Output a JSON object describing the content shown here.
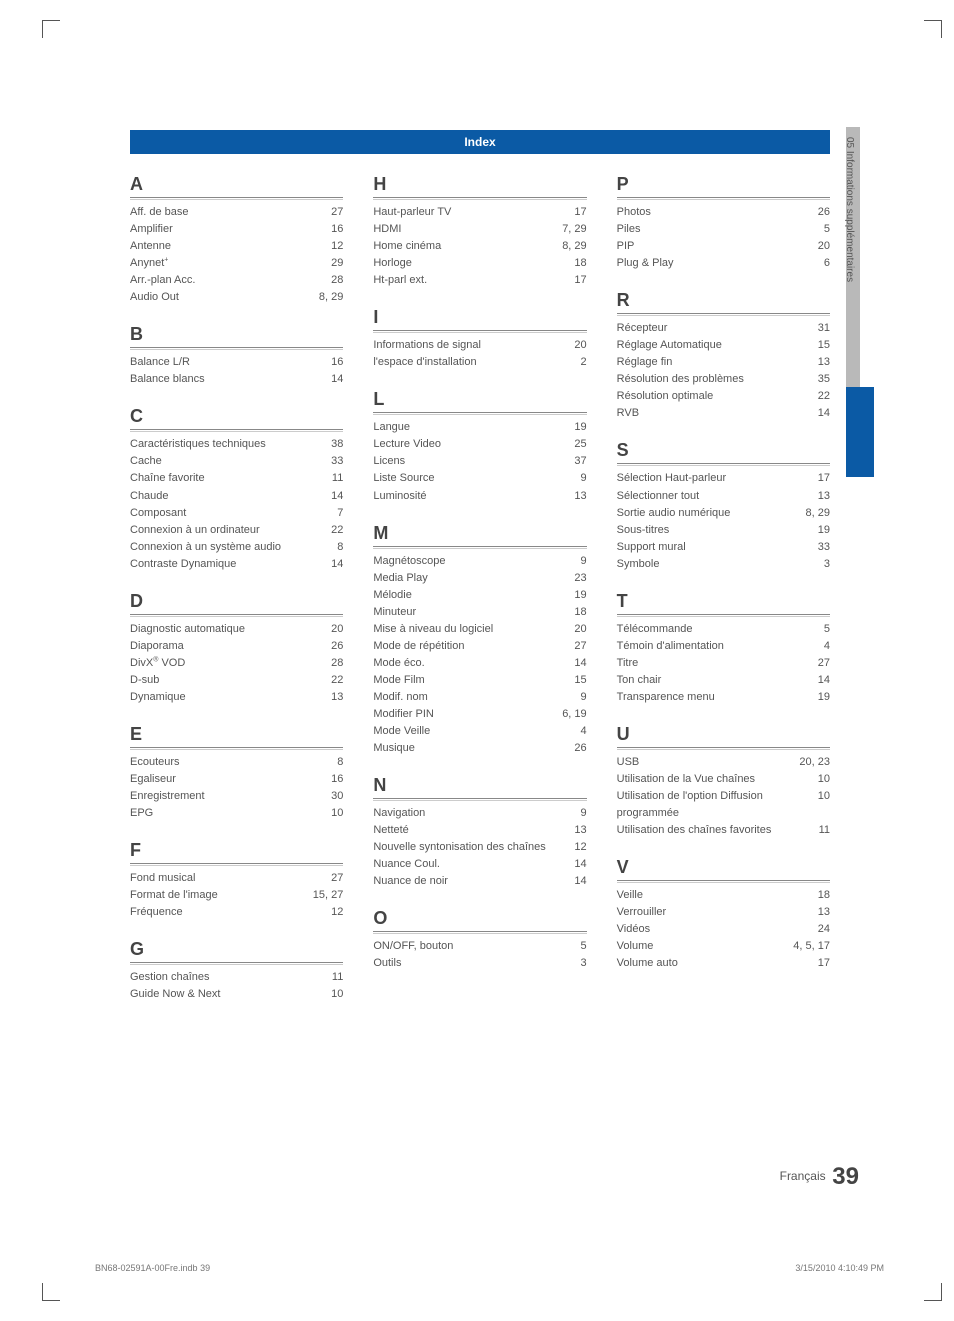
{
  "header": {
    "title": "Index"
  },
  "side_tab": {
    "label": "05   Informations supplémentaires"
  },
  "footer": {
    "lang": "Français",
    "page": "39"
  },
  "print_footer": {
    "left": "BN68-02591A-00Fre.indb   39",
    "right": "3/15/2010   4:10:49 PM"
  },
  "columns": [
    [
      {
        "letter": "A",
        "entries": [
          {
            "term": "Aff. de base",
            "pages": "27"
          },
          {
            "term": "Amplifier",
            "pages": "16"
          },
          {
            "term": "Antenne",
            "pages": "12"
          },
          {
            "term_html": "Anynet<sup>+</sup>",
            "pages": "29"
          },
          {
            "term": "Arr.-plan Acc.",
            "pages": "28"
          },
          {
            "term": "Audio Out",
            "pages": "8, 29"
          }
        ]
      },
      {
        "letter": "B",
        "entries": [
          {
            "term": "Balance L/R",
            "pages": "16"
          },
          {
            "term": "Balance blancs",
            "pages": "14"
          }
        ]
      },
      {
        "letter": "C",
        "entries": [
          {
            "term": "Caractéristiques techniques",
            "pages": "38"
          },
          {
            "term": "Cache",
            "pages": "33"
          },
          {
            "term": "Chaîne favorite",
            "pages": "11"
          },
          {
            "term": "Chaude",
            "pages": "14"
          },
          {
            "term": "Composant",
            "pages": "7"
          },
          {
            "term": "Connexion à un ordinateur",
            "pages": "22"
          },
          {
            "term": "Connexion à un système audio",
            "pages": "8"
          },
          {
            "term": "Contraste Dynamique",
            "pages": "14"
          }
        ]
      },
      {
        "letter": "D",
        "entries": [
          {
            "term": "Diagnostic automatique",
            "pages": "20"
          },
          {
            "term": "Diaporama",
            "pages": "26"
          },
          {
            "term_html": "DivX<sup>®</sup> VOD",
            "pages": "28"
          },
          {
            "term": "D-sub",
            "pages": "22"
          },
          {
            "term": "Dynamique",
            "pages": "13"
          }
        ]
      },
      {
        "letter": "E",
        "entries": [
          {
            "term": "Ecouteurs",
            "pages": "8"
          },
          {
            "term": "Egaliseur",
            "pages": "16"
          },
          {
            "term": "Enregistrement",
            "pages": "30"
          },
          {
            "term": "EPG",
            "pages": "10"
          }
        ]
      },
      {
        "letter": "F",
        "entries": [
          {
            "term": "Fond musical",
            "pages": "27"
          },
          {
            "term": "Format de l'image",
            "pages": "15, 27"
          },
          {
            "term": "Fréquence",
            "pages": "12"
          }
        ]
      },
      {
        "letter": "G",
        "entries": [
          {
            "term": "Gestion chaînes",
            "pages": "11"
          },
          {
            "term": "Guide Now & Next",
            "pages": "10"
          }
        ]
      }
    ],
    [
      {
        "letter": "H",
        "entries": [
          {
            "term": "Haut-parleur TV",
            "pages": "17"
          },
          {
            "term": "HDMI",
            "pages": "7, 29"
          },
          {
            "term": "Home cinéma",
            "pages": "8, 29"
          },
          {
            "term": "Horloge",
            "pages": "18"
          },
          {
            "term": "Ht-parl ext.",
            "pages": "17"
          }
        ]
      },
      {
        "letter": "I",
        "entries": [
          {
            "term": "Informations de signal",
            "pages": "20"
          },
          {
            "term": "l'espace d'installation",
            "pages": "2"
          }
        ]
      },
      {
        "letter": "L",
        "entries": [
          {
            "term": "Langue",
            "pages": "19"
          },
          {
            "term": "Lecture Video",
            "pages": "25"
          },
          {
            "term": "Licens",
            "pages": "37"
          },
          {
            "term": "Liste Source",
            "pages": "9"
          },
          {
            "term": "Luminosité",
            "pages": "13"
          }
        ]
      },
      {
        "letter": "M",
        "entries": [
          {
            "term": "Magnétoscope",
            "pages": "9"
          },
          {
            "term": "Media Play",
            "pages": "23"
          },
          {
            "term": "Mélodie",
            "pages": "19"
          },
          {
            "term": "Minuteur",
            "pages": "18"
          },
          {
            "term": "Mise à niveau du logiciel",
            "pages": "20"
          },
          {
            "term": "Mode de répétition",
            "pages": "27"
          },
          {
            "term": "Mode éco.",
            "pages": "14"
          },
          {
            "term": "Mode Film",
            "pages": "15"
          },
          {
            "term": "Modif. nom",
            "pages": "9"
          },
          {
            "term": "Modifier PIN",
            "pages": "6, 19"
          },
          {
            "term": "Mode Veille",
            "pages": "4"
          },
          {
            "term": "Musique",
            "pages": "26"
          }
        ]
      },
      {
        "letter": "N",
        "entries": [
          {
            "term": "Navigation",
            "pages": "9"
          },
          {
            "term": "Netteté",
            "pages": "13"
          },
          {
            "term": "Nouvelle syntonisation des chaînes",
            "pages": "12"
          },
          {
            "term": "Nuance Coul.",
            "pages": "14"
          },
          {
            "term": "Nuance de noir",
            "pages": "14"
          }
        ]
      },
      {
        "letter": "O",
        "entries": [
          {
            "term": "ON/OFF, bouton",
            "pages": "5"
          },
          {
            "term": "Outils",
            "pages": "3"
          }
        ]
      }
    ],
    [
      {
        "letter": "P",
        "entries": [
          {
            "term": "Photos",
            "pages": "26"
          },
          {
            "term": "Piles",
            "pages": "5"
          },
          {
            "term": "PIP",
            "pages": "20"
          },
          {
            "term": "Plug & Play",
            "pages": "6"
          }
        ]
      },
      {
        "letter": "R",
        "entries": [
          {
            "term": "Récepteur",
            "pages": "31"
          },
          {
            "term": "Réglage Automatique",
            "pages": "15"
          },
          {
            "term": "Réglage fin",
            "pages": "13"
          },
          {
            "term": "Résolution des problèmes",
            "pages": "35"
          },
          {
            "term": "Résolution optimale",
            "pages": "22"
          },
          {
            "term": "RVB",
            "pages": "14"
          }
        ]
      },
      {
        "letter": "S",
        "entries": [
          {
            "term": "Sélection Haut-parleur",
            "pages": "17"
          },
          {
            "term": "Sélectionner tout",
            "pages": "13"
          },
          {
            "term": "Sortie audio numérique",
            "pages": "8, 29"
          },
          {
            "term": "Sous-titres",
            "pages": "19"
          },
          {
            "term": "Support mural",
            "pages": "33"
          },
          {
            "term": "Symbole",
            "pages": "3"
          }
        ]
      },
      {
        "letter": "T",
        "entries": [
          {
            "term": "Télécommande",
            "pages": "5"
          },
          {
            "term": "Témoin d'alimentation",
            "pages": "4"
          },
          {
            "term": "Titre",
            "pages": "27"
          },
          {
            "term": "Ton chair",
            "pages": "14"
          },
          {
            "term": "Transparence menu",
            "pages": "19"
          }
        ]
      },
      {
        "letter": "U",
        "entries": [
          {
            "term": "USB",
            "pages": "20, 23"
          },
          {
            "term": "Utilisation de la Vue chaînes",
            "pages": "10"
          },
          {
            "term": "Utilisation de l'option Diffusion programmée",
            "pages": "10"
          },
          {
            "term": "Utilisation des chaînes favorites",
            "pages": "11"
          }
        ]
      },
      {
        "letter": "V",
        "entries": [
          {
            "term": "Veille",
            "pages": "18"
          },
          {
            "term": "Verrouiller",
            "pages": "13"
          },
          {
            "term": "Vidéos",
            "pages": "24"
          },
          {
            "term": "Volume",
            "pages": "4, 5, 17"
          },
          {
            "term": "Volume auto",
            "pages": "17"
          }
        ]
      }
    ]
  ]
}
